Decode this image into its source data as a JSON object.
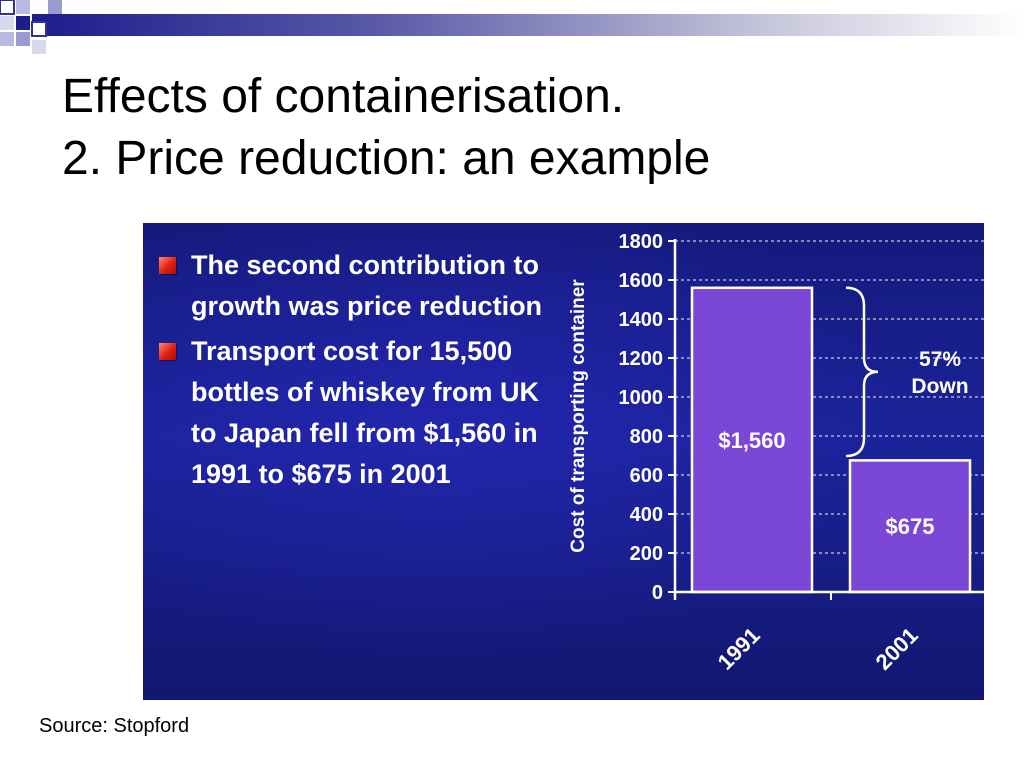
{
  "slide": {
    "title_line1": "Effects of containerisation.",
    "title_line2": "2. Price reduction: an example",
    "source": "Source: Stopford",
    "bullets": [
      "The second contribution to growth was price reduction",
      "Transport cost for 15,500 bottles of whiskey from UK to Japan fell from $1,560 in 1991 to $675 in 2001"
    ]
  },
  "colors": {
    "panel_bg": "#1b239a",
    "bar_fill": "#7b47d6",
    "bar_stroke": "#ffffff",
    "text": "#ffffff",
    "bullet": "#e02010"
  },
  "chart_data": {
    "type": "bar",
    "categories": [
      "1991",
      "2001"
    ],
    "values": [
      1560,
      675
    ],
    "data_labels": [
      "$1,560",
      "$675"
    ],
    "title": "",
    "xlabel": "",
    "ylabel": "Cost of transporting container",
    "ylim": [
      0,
      1800
    ],
    "yticks": [
      0,
      200,
      400,
      600,
      800,
      1000,
      1200,
      1400,
      1600,
      1800
    ],
    "grid": true,
    "annotation": {
      "line1": "57%",
      "line2": "Down"
    }
  }
}
